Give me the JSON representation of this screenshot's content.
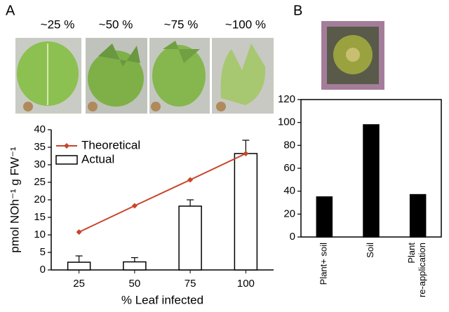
{
  "panel_labels": [
    "A",
    "B"
  ],
  "image_labels": [
    "~25 %",
    "~50 %",
    "~75 %",
    "~100 %"
  ],
  "chart_data": [
    {
      "type": "bar",
      "ylabel": "pmol NOh⁻¹ g FW⁻¹",
      "xlabel": "% Leaf infected",
      "categories": [
        "25",
        "50",
        "75",
        "100"
      ],
      "ylim": [
        0,
        40
      ],
      "yticks": [
        0,
        5,
        10,
        15,
        20,
        25,
        30,
        35,
        40
      ],
      "legend": "upper left",
      "series": [
        {
          "name": "Theoretical",
          "type": "line",
          "color": "#c8452b",
          "values": [
            10.8,
            18.3,
            25.7,
            33.2
          ]
        },
        {
          "name": "Actual",
          "type": "bar",
          "color": "#ffffff",
          "values": [
            2.2,
            2.3,
            18.2,
            33.2
          ],
          "errors": [
            1.8,
            1.2,
            1.8,
            3.8
          ]
        }
      ]
    },
    {
      "type": "bar",
      "categories": [
        [
          "Plant+ soil"
        ],
        [
          "Soil"
        ],
        [
          "Plant",
          "re-application"
        ]
      ],
      "ylim": [
        0,
        120
      ],
      "yticks": [
        0,
        20,
        40,
        60,
        80,
        100,
        120
      ],
      "series": [
        {
          "type": "bar",
          "color": "#000000",
          "values": [
            35,
            98,
            37
          ]
        }
      ]
    }
  ]
}
